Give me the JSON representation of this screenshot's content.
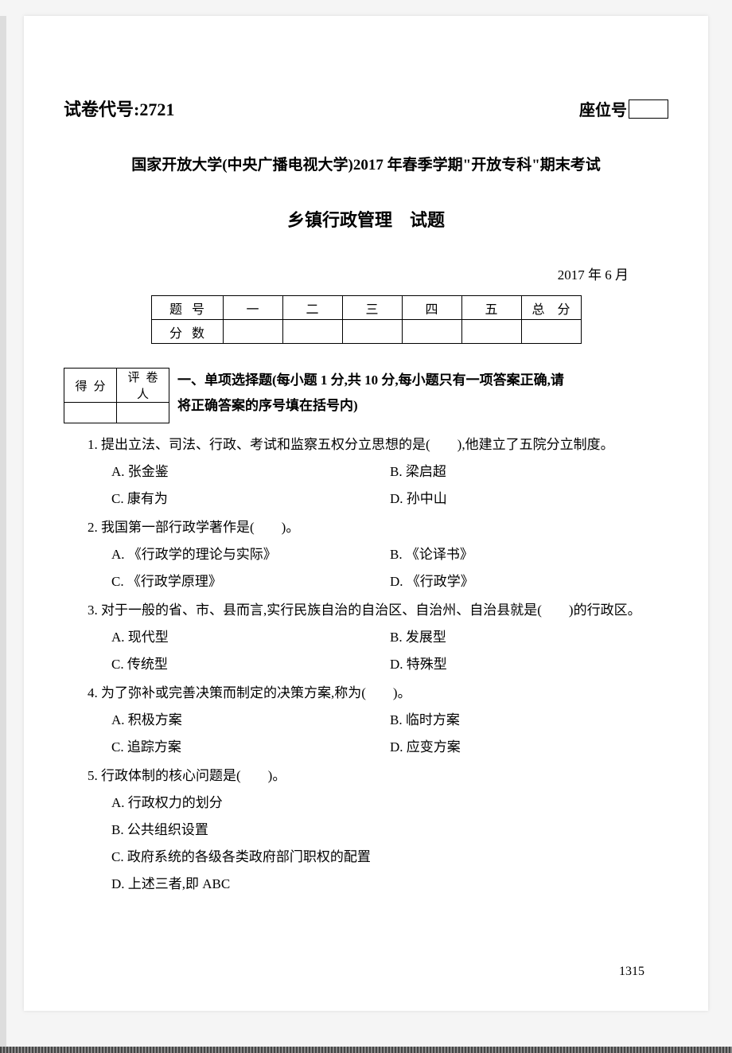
{
  "header": {
    "exam_code_label": "试卷代号:",
    "exam_code": "2721",
    "seat_label": "座位号"
  },
  "university": "国家开放大学(中央广播电视大学)2017 年春季学期\"开放专科\"期末考试",
  "subject": "乡镇行政管理　试题",
  "date": "2017 年 6 月",
  "score_table": {
    "row1_label": "题号",
    "cols": [
      "一",
      "二",
      "三",
      "四",
      "五",
      "总　分"
    ],
    "row2_label": "分数"
  },
  "grader": {
    "c1": "得分",
    "c2": "评卷人"
  },
  "section1": {
    "line1": "一、单项选择题(每小题 1 分,共 10 分,每小题只有一项答案正确,请",
    "line2": "将正确答案的序号填在括号内)"
  },
  "questions": [
    {
      "num": "1.",
      "text": "提出立法、司法、行政、考试和监察五权分立思想的是(　　),他建立了五院分立制度。",
      "options": [
        {
          "k": "A.",
          "v": "张金鉴"
        },
        {
          "k": "B.",
          "v": "梁启超"
        },
        {
          "k": "C.",
          "v": "康有为"
        },
        {
          "k": "D.",
          "v": "孙中山"
        }
      ],
      "layout": "two-col"
    },
    {
      "num": "2.",
      "text": "我国第一部行政学著作是(　　)。",
      "options": [
        {
          "k": "A.",
          "v": "《行政学的理论与实际》"
        },
        {
          "k": "B.",
          "v": "《论译书》"
        },
        {
          "k": "C.",
          "v": "《行政学原理》"
        },
        {
          "k": "D.",
          "v": "《行政学》"
        }
      ],
      "layout": "two-col"
    },
    {
      "num": "3.",
      "text": "对于一般的省、市、县而言,实行民族自治的自治区、自治州、自治县就是(　　)的行政区。",
      "options": [
        {
          "k": "A.",
          "v": "现代型"
        },
        {
          "k": "B.",
          "v": "发展型"
        },
        {
          "k": "C.",
          "v": "传统型"
        },
        {
          "k": "D.",
          "v": "特殊型"
        }
      ],
      "layout": "two-col"
    },
    {
      "num": "4.",
      "text": "为了弥补或完善决策而制定的决策方案,称为(　　)。",
      "options": [
        {
          "k": "A.",
          "v": "积极方案"
        },
        {
          "k": "B.",
          "v": "临时方案"
        },
        {
          "k": "C.",
          "v": "追踪方案"
        },
        {
          "k": "D.",
          "v": "应变方案"
        }
      ],
      "layout": "two-col"
    },
    {
      "num": "5.",
      "text": "行政体制的核心问题是(　　)。",
      "options": [
        {
          "k": "A.",
          "v": "行政权力的划分"
        },
        {
          "k": "B.",
          "v": "公共组织设置"
        },
        {
          "k": "C.",
          "v": "政府系统的各级各类政府部门职权的配置"
        },
        {
          "k": "D.",
          "v": "上述三者,即 ABC"
        }
      ],
      "layout": "one-col"
    }
  ],
  "page_num": "1315"
}
